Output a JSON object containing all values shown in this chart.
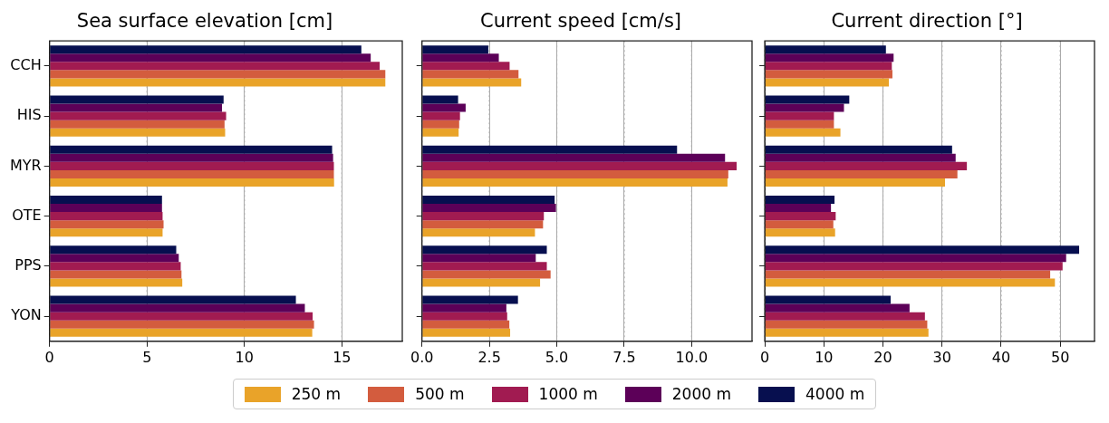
{
  "chart_data": [
    {
      "type": "bar",
      "orientation": "horizontal",
      "title": "Sea surface elevation [cm]",
      "categories": [
        "CCH",
        "HIS",
        "MYR",
        "OTE",
        "PPS",
        "YON"
      ],
      "xlim": [
        0,
        18.1
      ],
      "xticks": [
        0,
        5,
        10,
        15
      ],
      "grid": "x",
      "legend": "bottom",
      "series": [
        {
          "name": "250 m",
          "color": "#e9a329",
          "values": [
            17.23,
            9.01,
            14.6,
            5.8,
            6.81,
            13.48
          ]
        },
        {
          "name": "500 m",
          "color": "#d35c3e",
          "values": [
            17.23,
            8.98,
            14.59,
            5.85,
            6.77,
            13.57
          ]
        },
        {
          "name": "1000 m",
          "color": "#a11b51",
          "values": [
            16.94,
            9.06,
            14.59,
            5.8,
            6.73,
            13.5
          ]
        },
        {
          "name": "2000 m",
          "color": "#5c0058",
          "values": [
            16.48,
            8.85,
            14.55,
            5.77,
            6.63,
            13.1
          ]
        },
        {
          "name": "4000 m",
          "color": "#070f4f",
          "values": [
            16.0,
            8.93,
            14.5,
            5.77,
            6.5,
            12.64
          ]
        }
      ]
    },
    {
      "type": "bar",
      "orientation": "horizontal",
      "title": "Current speed [cm/s]",
      "categories": [
        null,
        null,
        null,
        null,
        null,
        null
      ],
      "xlim": [
        0,
        12.24
      ],
      "xticks": [
        {
          "value": 0,
          "label": "0.0"
        },
        2.5,
        {
          "value": 5,
          "label": "5.0"
        },
        7.5,
        {
          "value": 10,
          "label": "10.0"
        }
      ],
      "grid": "x",
      "tick_labels": "x",
      "series": [
        {
          "color": "#e9a329",
          "values": [
            3.68,
            1.36,
            11.33,
            4.19,
            4.38,
            3.27
          ]
        },
        {
          "color": "#d35c3e",
          "values": [
            3.58,
            1.38,
            11.36,
            4.49,
            4.77,
            3.24
          ]
        },
        {
          "color": "#a11b51",
          "values": [
            3.25,
            1.41,
            11.67,
            4.52,
            4.63,
            3.16
          ]
        },
        {
          "color": "#5c0058",
          "values": [
            2.85,
            1.62,
            11.24,
            4.97,
            4.22,
            3.13
          ]
        },
        {
          "color": "#070f4f",
          "values": [
            2.46,
            1.34,
            9.46,
            4.92,
            4.63,
            3.56
          ]
        }
      ]
    },
    {
      "type": "bar",
      "orientation": "horizontal",
      "title": "Current direction [°]",
      "categories": [
        null,
        null,
        null,
        null,
        null,
        null
      ],
      "xlim": [
        0,
        55.8
      ],
      "xticks": [
        0,
        10,
        20,
        30,
        40,
        50
      ],
      "grid": "x",
      "tick_labels": "x",
      "series": [
        {
          "color": "#e9a329",
          "values": [
            21.0,
            12.8,
            30.5,
            11.9,
            49.1,
            27.7
          ]
        },
        {
          "color": "#d35c3e",
          "values": [
            21.6,
            11.7,
            32.6,
            11.6,
            48.3,
            27.5
          ]
        },
        {
          "color": "#a11b51",
          "values": [
            21.5,
            11.7,
            34.2,
            12.0,
            50.4,
            27.1
          ]
        },
        {
          "color": "#5c0058",
          "values": [
            21.8,
            13.4,
            32.3,
            11.2,
            51.0,
            24.5
          ]
        },
        {
          "color": "#070f4f",
          "values": [
            20.5,
            14.3,
            31.7,
            11.8,
            53.2,
            21.3
          ]
        }
      ]
    }
  ]
}
